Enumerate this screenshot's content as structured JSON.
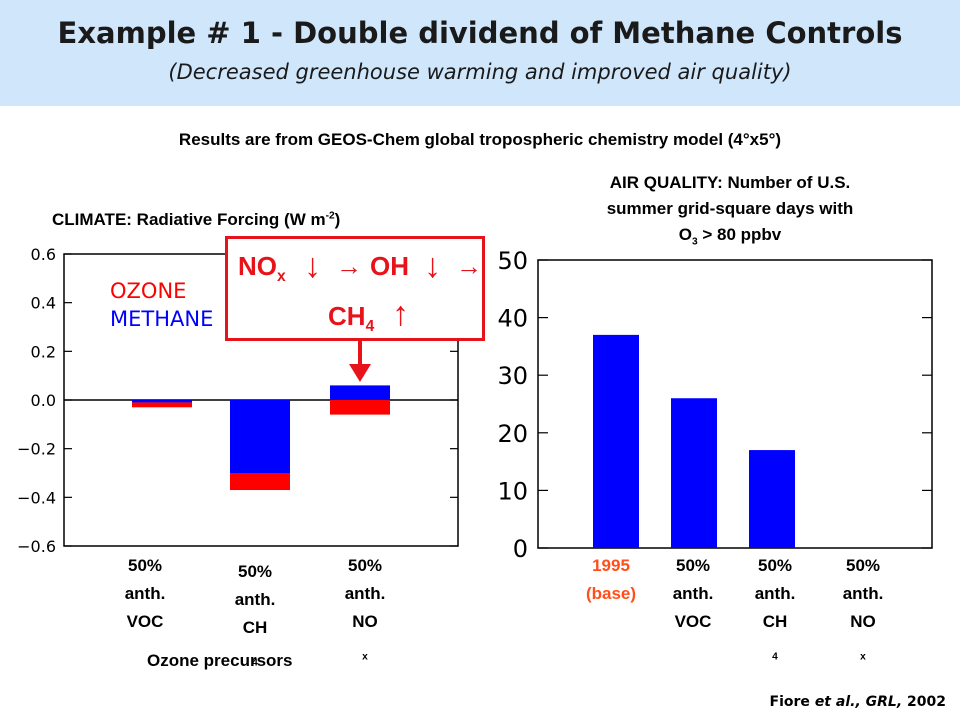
{
  "header": {
    "title": "Example # 1 - Double dividend of Methane Controls",
    "subtitle": "(Decreased greenhouse warming and improved air quality)"
  },
  "model_note": "Results are from GEOS-Chem global tropospheric chemistry model (4°x5°)",
  "callout": {
    "nox": "NO",
    "nox_sub": "x",
    "oh": "OH",
    "ch4": "CH",
    "ch4_sub": "4",
    "arrow": "→",
    "down": "↓",
    "up": "↑"
  },
  "group_label": "Ozone precursors",
  "citation": {
    "author": "Fiore",
    "etal": "et al., GRL,",
    "year": "2002"
  },
  "colors": {
    "ozone": "#ff0000",
    "methane": "#0000ff",
    "header_bg": "#cfe6fb",
    "callout": "#e8131a",
    "base_label": "#ff4f1a"
  },
  "chart_data": [
    {
      "type": "bar",
      "title": "CLIMATE: Radiative Forcing (W m",
      "title_sup": "-2",
      "title_end": ")",
      "categories": [
        {
          "line1": "50%",
          "line2": "anth.",
          "line3": "VOC",
          "sub": ""
        },
        {
          "line1": "50%",
          "line2": "anth.",
          "line3": "CH",
          "sub": "4"
        },
        {
          "line1": "50%",
          "line2": "anth.",
          "line3": "NO",
          "sub": "x"
        }
      ],
      "series": [
        {
          "name": "OZONE",
          "color": "#ff0000",
          "values": [
            -0.02,
            -0.07,
            -0.06
          ]
        },
        {
          "name": "METHANE",
          "color": "#0000ff",
          "values": [
            -0.01,
            -0.3,
            0.06
          ]
        }
      ],
      "ylim": [
        -0.6,
        0.6
      ],
      "yticks": [
        0.6,
        0.4,
        0.2,
        0.0,
        -0.2,
        -0.4,
        -0.6
      ],
      "ytick_labels": [
        "0.6",
        "0.4",
        "0.2",
        "0.0",
        "−0.2",
        "−0.4",
        "−0.6"
      ],
      "legend": "top-left"
    },
    {
      "type": "bar",
      "title_line1": "AIR QUALITY: Number of U.S.",
      "title_line2": "summer grid-square days with",
      "title_line3a": "O",
      "title_line3sub": "3",
      "title_line3b": " > 80 ppbv",
      "categories": [
        {
          "line1": "1995",
          "line2": "(base)",
          "line3": "",
          "sub": ""
        },
        {
          "line1": "50%",
          "line2": "anth.",
          "line3": "VOC",
          "sub": ""
        },
        {
          "line1": "50%",
          "line2": "anth.",
          "line3": "CH",
          "sub": "4"
        },
        {
          "line1": "50%",
          "line2": "anth.",
          "line3": "NO",
          "sub": "x"
        }
      ],
      "values": [
        37,
        26,
        17,
        0
      ],
      "color": "#0000ff",
      "ylim": [
        0,
        50
      ],
      "yticks": [
        0,
        10,
        20,
        30,
        40,
        50
      ],
      "ytick_labels": [
        "0",
        "10",
        "20",
        "30",
        "40",
        "50"
      ]
    }
  ]
}
